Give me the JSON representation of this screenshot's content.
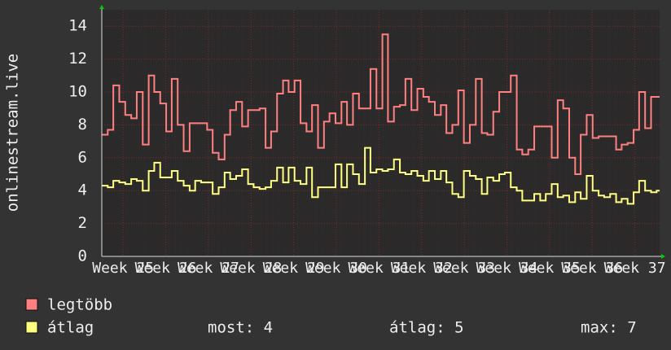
{
  "chart_data": {
    "type": "line",
    "step": true,
    "y_label": "onlinestream.live",
    "x": [
      24.5,
      24.64,
      24.77,
      24.91,
      25.05,
      25.19,
      25.32,
      25.46,
      25.6,
      25.73,
      25.87,
      26.01,
      26.14,
      26.28,
      26.42,
      26.56,
      26.69,
      26.83,
      26.97,
      27.1,
      27.24,
      27.38,
      27.51,
      27.65,
      27.79,
      27.93,
      28.06,
      28.2,
      28.34,
      28.47,
      28.61,
      28.75,
      28.88,
      29.02,
      29.16,
      29.3,
      29.43,
      29.57,
      29.71,
      29.84,
      29.98,
      30.12,
      30.25,
      30.39,
      30.53,
      30.67,
      30.8,
      30.94,
      31.08,
      31.21,
      31.35,
      31.49,
      31.62,
      31.76,
      31.9,
      32.04,
      32.17,
      32.31,
      32.45,
      32.58,
      32.72,
      32.86,
      32.99,
      33.13,
      33.27,
      33.41,
      33.54,
      33.68,
      33.82,
      33.95,
      34.09,
      34.23,
      34.36,
      34.5,
      34.64,
      34.78,
      34.91,
      35.05,
      35.19,
      35.32,
      35.46,
      35.6,
      35.73,
      35.87,
      36.01,
      36.15,
      36.28,
      36.42,
      36.56,
      36.69,
      36.83,
      36.97,
      37.1,
      37.24,
      37.38,
      37.51
    ],
    "series": [
      {
        "name": "legtöbb",
        "color": "#ff8080",
        "values": [
          7.4,
          7.7,
          10.4,
          9.4,
          8.6,
          8.4,
          10.0,
          6.8,
          11.0,
          10.0,
          9.3,
          7.6,
          10.8,
          8.0,
          6.4,
          8.1,
          8.1,
          8.1,
          7.7,
          6.3,
          5.9,
          7.4,
          8.9,
          9.4,
          7.9,
          8.9,
          8.9,
          9.0,
          6.6,
          7.6,
          9.9,
          10.7,
          10.0,
          10.7,
          8.1,
          7.6,
          9.2,
          6.6,
          8.2,
          8.7,
          8.1,
          9.4,
          8.0,
          9.9,
          9.0,
          9.0,
          11.4,
          9.0,
          13.5,
          8.2,
          9.1,
          9.2,
          10.8,
          8.9,
          10.2,
          9.7,
          9.4,
          8.6,
          9.2,
          7.5,
          8.0,
          10.1,
          6.9,
          8.0,
          10.8,
          7.5,
          7.4,
          8.8,
          10.0,
          10.0,
          11.0,
          6.5,
          6.2,
          6.5,
          7.9,
          7.9,
          7.9,
          6.0,
          9.5,
          9.0,
          6.0,
          5.0,
          7.4,
          8.6,
          7.2,
          7.3,
          7.3,
          7.3,
          6.5,
          6.8,
          6.9,
          7.7,
          10.0,
          7.8,
          9.7,
          9.7
        ]
      },
      {
        "name": "átlag",
        "color": "#ffff80",
        "values": [
          4.3,
          4.2,
          4.6,
          4.5,
          4.4,
          4.7,
          4.6,
          4.0,
          5.2,
          5.7,
          4.8,
          4.8,
          5.2,
          4.6,
          4.3,
          4.0,
          4.6,
          4.5,
          4.5,
          3.8,
          4.2,
          5.1,
          4.7,
          4.9,
          5.3,
          4.4,
          4.2,
          4.1,
          4.2,
          4.6,
          5.4,
          4.5,
          5.4,
          4.6,
          4.4,
          5.4,
          3.6,
          4.2,
          4.2,
          4.2,
          5.6,
          4.2,
          5.6,
          5.0,
          4.4,
          6.6,
          5.1,
          5.3,
          5.2,
          5.3,
          5.9,
          5.1,
          5.0,
          5.2,
          4.9,
          4.6,
          5.2,
          4.7,
          5.2,
          4.5,
          3.8,
          3.6,
          5.2,
          4.9,
          4.7,
          3.8,
          4.8,
          4.6,
          5.0,
          5.1,
          4.2,
          4.0,
          3.4,
          3.4,
          3.8,
          3.4,
          3.8,
          4.4,
          3.6,
          3.7,
          3.3,
          3.9,
          3.5,
          4.9,
          4.0,
          3.7,
          3.6,
          3.8,
          3.3,
          3.5,
          3.2,
          3.9,
          4.6,
          4.0,
          3.9,
          4.0
        ]
      }
    ],
    "xlim": [
      24.5,
      37.58
    ],
    "xticks": [
      {
        "value": 25,
        "label": "Week 25"
      },
      {
        "value": 26,
        "label": "Week 26"
      },
      {
        "value": 27,
        "label": "Week 27"
      },
      {
        "value": 28,
        "label": "Week 28"
      },
      {
        "value": 29,
        "label": "Week 29"
      },
      {
        "value": 30,
        "label": "Week 30"
      },
      {
        "value": 31,
        "label": "Week 31"
      },
      {
        "value": 32,
        "label": "Week 32"
      },
      {
        "value": 33,
        "label": "Week 33"
      },
      {
        "value": 34,
        "label": "Week 34"
      },
      {
        "value": 35,
        "label": "Week 35"
      },
      {
        "value": 36,
        "label": "Week 36"
      },
      {
        "value": 37,
        "label": "Week 37"
      }
    ],
    "ylim": [
      0,
      15
    ],
    "yticks": [
      0,
      2,
      4,
      6,
      8,
      10,
      12,
      14
    ],
    "grid": true,
    "stats": [
      "most: 4",
      "átlag: 5",
      "max: 7"
    ]
  }
}
